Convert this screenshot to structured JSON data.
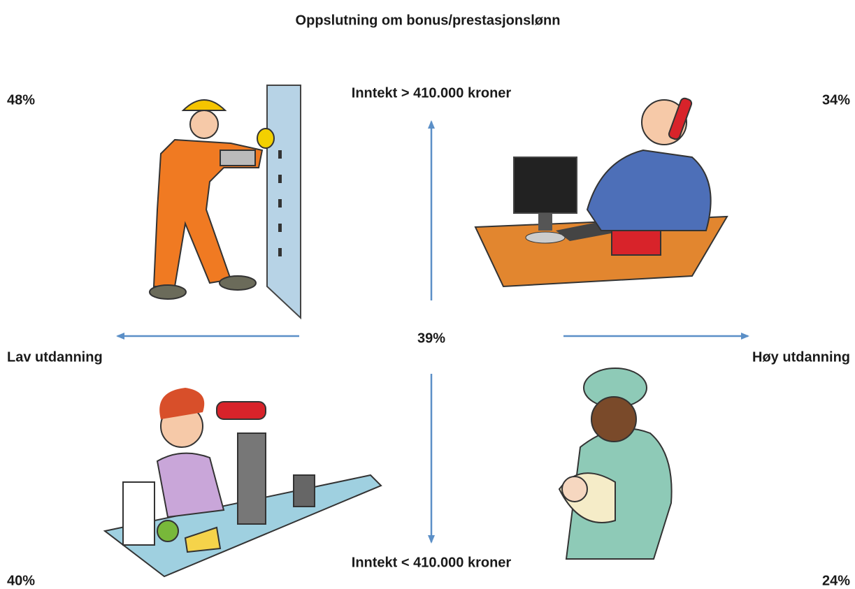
{
  "title": "Oppslutning om bonus/prestasjonslønn",
  "axes": {
    "top": "Inntekt > 410.000 kroner",
    "bottom": "Inntekt < 410.000 kroner",
    "left": "Lav utdanning",
    "right": "Høy utdanning"
  },
  "center": "39%",
  "quadrants": {
    "top_left": "48%",
    "top_right": "34%",
    "bottom_left": "40%",
    "bottom_right": "24%"
  }
}
